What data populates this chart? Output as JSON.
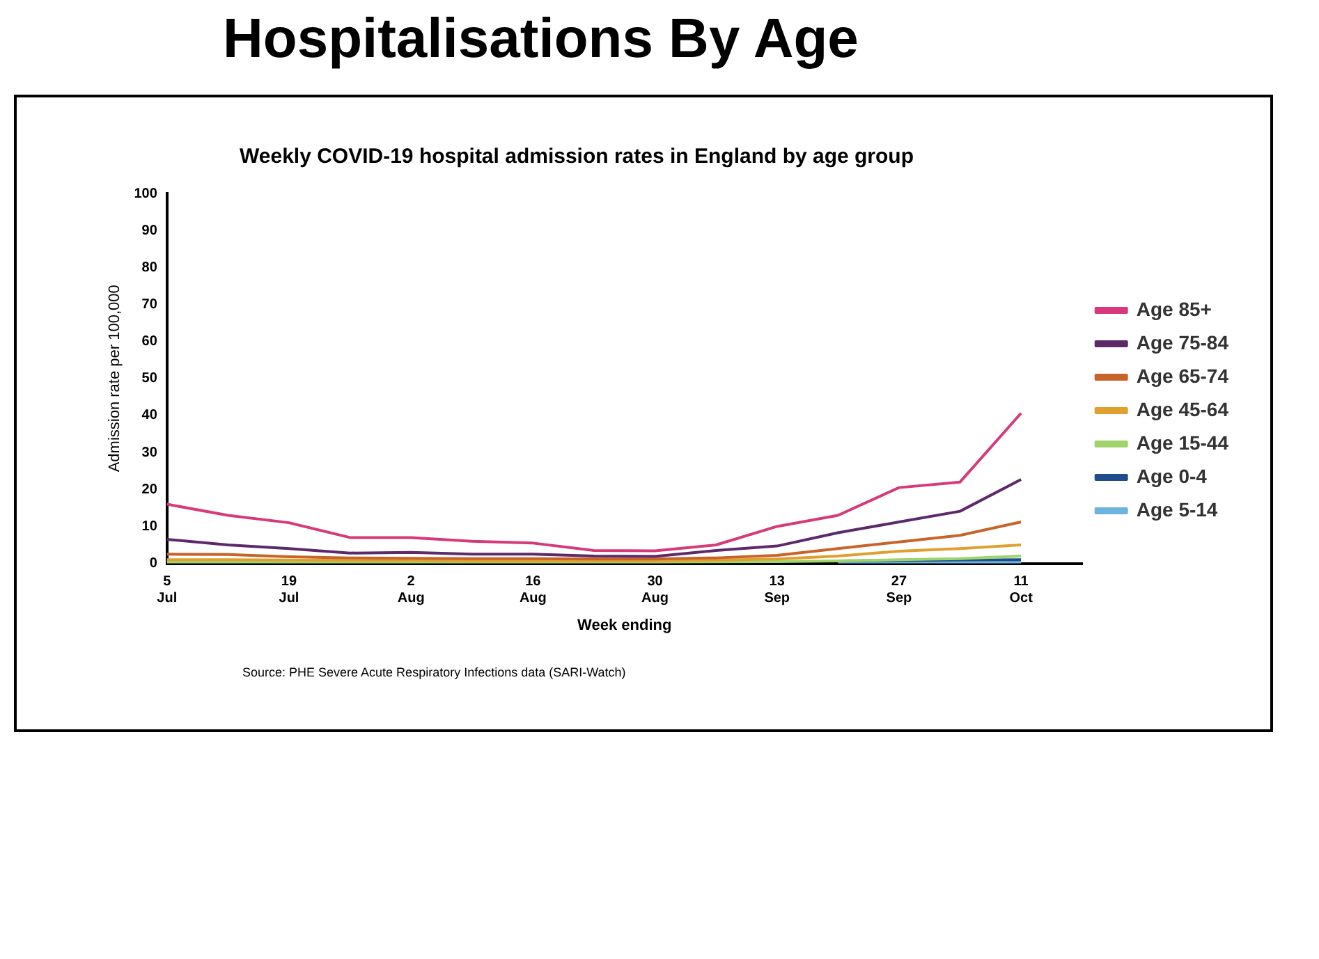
{
  "chart_data": {
    "type": "line",
    "title": "Hospitalisations By Age",
    "subtitle": "Weekly COVID-19 hospital admission rates in England by age group",
    "xlabel": "Week ending",
    "ylabel": "Admission rate per 100,000",
    "categories": [
      "5 Jul",
      null,
      "19 Jul",
      null,
      "2 Aug",
      null,
      "16 Aug",
      null,
      "30 Aug",
      null,
      "13 Sep",
      null,
      "27 Sep",
      null,
      "11 Oct",
      null
    ],
    "series": [
      {
        "name": "Age 85+",
        "color": "#d63a7a",
        "values": [
          16,
          13,
          11,
          7,
          7,
          6,
          5.5,
          3.5,
          3.4,
          5,
          10,
          13,
          20.5,
          22,
          40.6,
          null
        ]
      },
      {
        "name": "Age 75-84",
        "color": "#5c2a6b",
        "values": [
          6.5,
          5,
          4,
          2.8,
          3,
          2.5,
          2.5,
          2,
          1.9,
          3.5,
          4.7,
          8.3,
          11.2,
          14.1,
          22.7,
          null
        ]
      },
      {
        "name": "Age 65-74",
        "color": "#c8642a",
        "values": [
          2.5,
          2.4,
          1.8,
          1.5,
          1.4,
          1.3,
          1.3,
          1.2,
          1.2,
          1.5,
          2.2,
          4,
          5.8,
          7.6,
          11.2,
          null
        ]
      },
      {
        "name": "Age 45-64",
        "color": "#e0a030",
        "values": [
          1,
          1,
          0.9,
          0.8,
          0.8,
          0.7,
          0.7,
          0.7,
          0.7,
          0.9,
          1.2,
          2,
          3.3,
          4,
          5,
          null
        ]
      },
      {
        "name": "Age 15-44",
        "color": "#9fd36b",
        "values": [
          0.3,
          0.3,
          0.3,
          0.3,
          0.3,
          0.3,
          0.3,
          0.3,
          0.3,
          0.4,
          0.5,
          0.7,
          1,
          1.3,
          2,
          null
        ]
      },
      {
        "name": "Age 0-4",
        "color": "#1f4e8c",
        "values": [
          null,
          null,
          null,
          null,
          null,
          null,
          null,
          null,
          null,
          null,
          null,
          0.7,
          0.8,
          0.9,
          1,
          null
        ]
      },
      {
        "name": "Age 5-14",
        "color": "#6db3e0",
        "values": [
          null,
          null,
          null,
          null,
          null,
          null,
          null,
          null,
          null,
          null,
          null,
          0.2,
          0.2,
          0.2,
          0.3,
          null
        ]
      }
    ],
    "ylim": [
      0,
      100
    ],
    "yticks": [
      0,
      10,
      20,
      30,
      40,
      50,
      60,
      70,
      80,
      90,
      100
    ],
    "grid": false,
    "legend": "right",
    "marker": "none",
    "line_style": "solid",
    "annotations": [
      "Source: PHE Severe Acute Respiratory Infections data (SARI-Watch)"
    ]
  }
}
